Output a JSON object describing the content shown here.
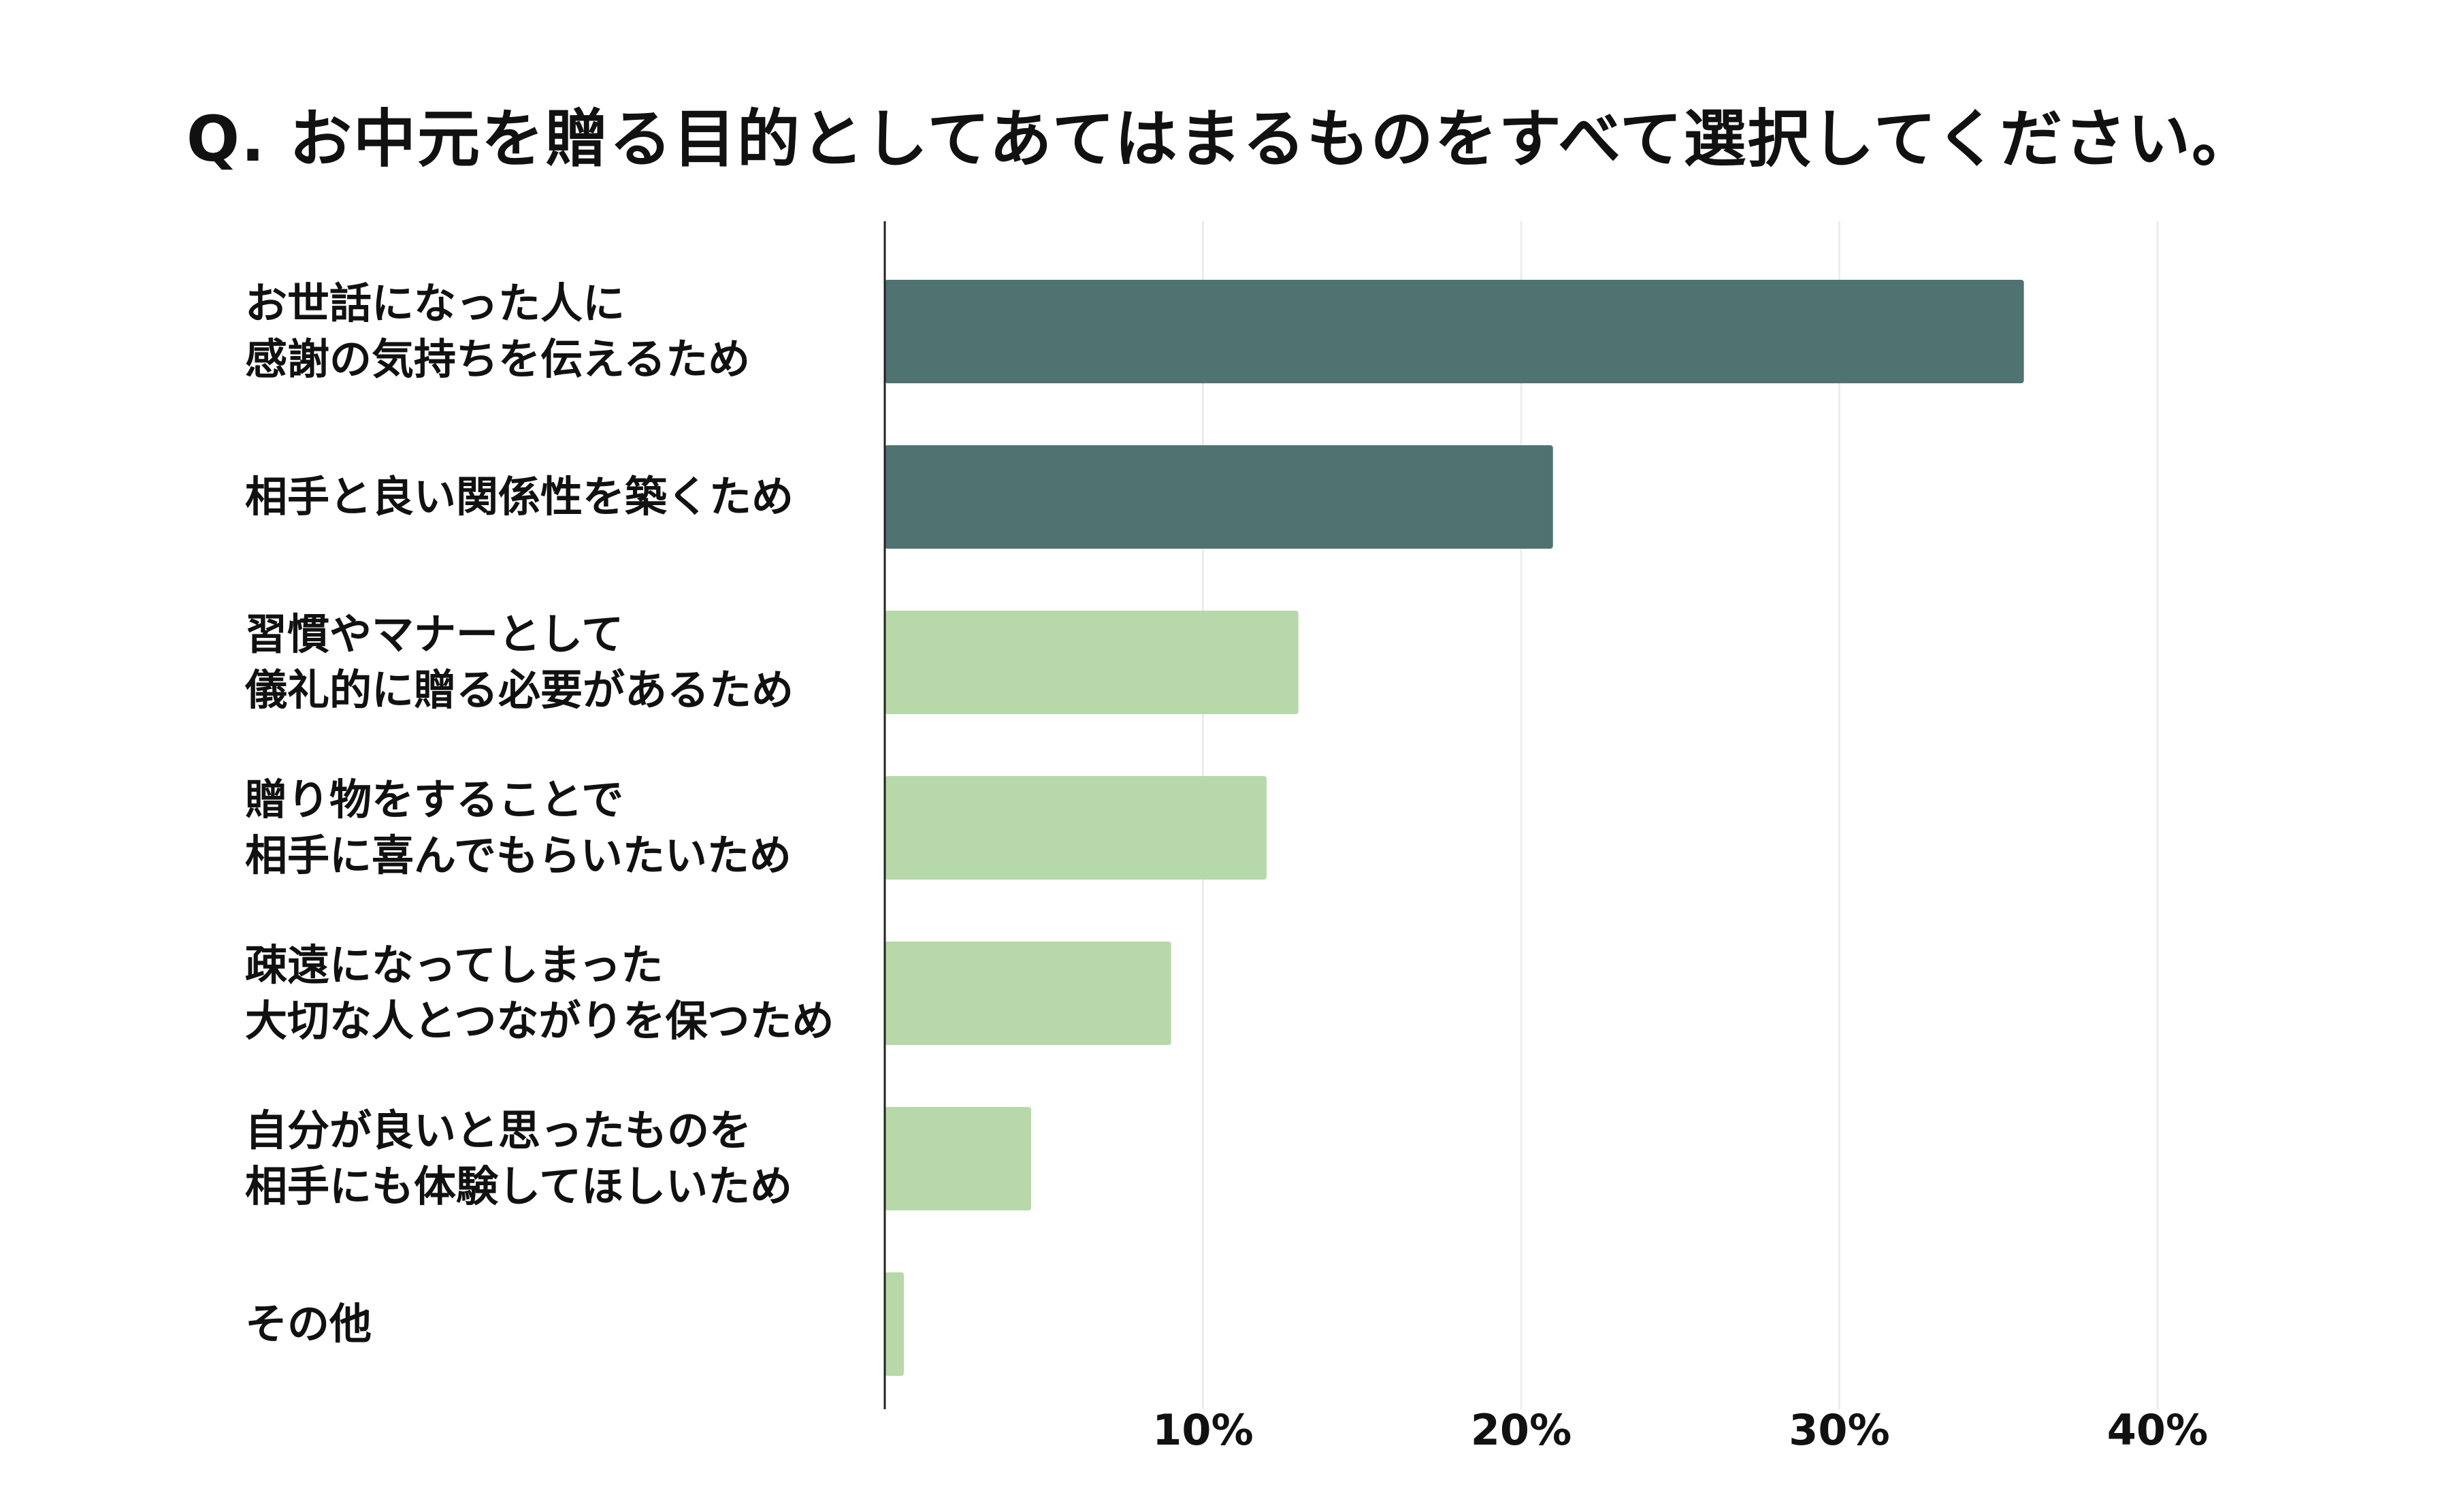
{
  "chart_data": {
    "type": "bar",
    "orientation": "horizontal",
    "title": "Q. お中元を贈る目的としてあてはまるものをすべて選択してください。",
    "categories": [
      "お世話になった人に\n感謝の気持ちを伝えるため",
      "相手と良い関係性を築くため",
      "習慣やマナーとして\n儀礼的に贈る必要があるため",
      "贈り物をすることで\n相手に喜んでもらいたいため",
      "疎遠になってしまった\n大切な人とつながりを保つため",
      "自分が良いと思ったものを\n相手にも体験してほしいため",
      "その他"
    ],
    "values": [
      35.8,
      21.0,
      13.0,
      12.0,
      9.0,
      4.6,
      0.6
    ],
    "highlighted": [
      true,
      true,
      false,
      false,
      false,
      false,
      false
    ],
    "xlim": [
      0,
      40
    ],
    "xticks": [
      10,
      20,
      30,
      40
    ],
    "xtick_labels": [
      "10%",
      "20%",
      "30%",
      "40%"
    ],
    "xlabel": "",
    "ylabel": "",
    "grid": "vertical",
    "legend": "none",
    "colors": {
      "highlight": "#4f7370",
      "normal": "#b7d8a9",
      "axis": "#222222",
      "grid": "#ececec"
    }
  }
}
